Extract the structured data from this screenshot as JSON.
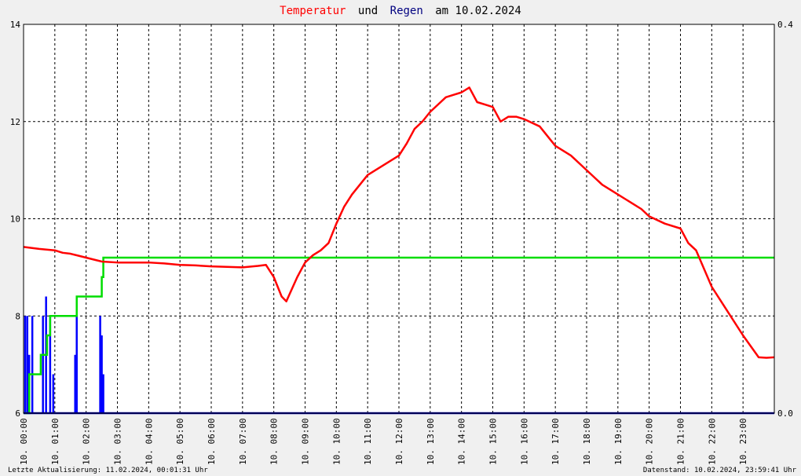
{
  "title": {
    "part1": "Temperatur",
    "part2": "und",
    "part3": "Regen",
    "part4": "am 10.02.2024",
    "color_temp": "#ff0000",
    "color_rain": "#000080",
    "color_plain": "#000000"
  },
  "footer": {
    "left": "Letzte Aktualisierung: 11.02.2024, 00:01:31 Uhr",
    "right": "Datenstand: 10.02.2024, 23:59:41 Uhr"
  },
  "chart_data": {
    "type": "line",
    "title": "Temperatur und Regen am 10.02.2024",
    "x_unit": "hour of day",
    "xlim": [
      0,
      24
    ],
    "x_ticks": [
      "10. 00:00",
      "10. 01:00",
      "10. 02:00",
      "10. 03:00",
      "10. 04:00",
      "10. 05:00",
      "10. 06:00",
      "10. 07:00",
      "10. 08:00",
      "10. 09:00",
      "10. 10:00",
      "10. 11:00",
      "10. 12:00",
      "10. 13:00",
      "10. 14:00",
      "10. 15:00",
      "10. 16:00",
      "10. 17:00",
      "10. 18:00",
      "10. 19:00",
      "10. 20:00",
      "10. 21:00",
      "10. 22:00",
      "10. 23:00"
    ],
    "y_left": {
      "ylim": [
        6,
        14
      ],
      "ticks": [
        "6",
        "8",
        "10",
        "12",
        "14"
      ]
    },
    "y_right": {
      "ylim": [
        0.0,
        0.4
      ],
      "ticks": [
        "0.0",
        "0.4"
      ]
    },
    "grid": true,
    "legend": "none",
    "series": [
      {
        "key": "temp",
        "axis": "left",
        "color": "#ff0000",
        "x": [
          0,
          0.5,
          1,
          1.25,
          1.5,
          1.75,
          2,
          2.25,
          2.5,
          3,
          3.5,
          4,
          4.5,
          5,
          5.5,
          6,
          6.5,
          7,
          7.5,
          7.75,
          8,
          8.25,
          8.4,
          8.75,
          9,
          9.25,
          9.5,
          9.75,
          10,
          10.25,
          10.5,
          11,
          11.5,
          12,
          12.25,
          12.5,
          12.75,
          13,
          13.5,
          13.75,
          14,
          14.25,
          14.5,
          14.75,
          15,
          15.25,
          15.5,
          15.75,
          16,
          16.5,
          17,
          17.5,
          18,
          18.5,
          19,
          19.25,
          19.5,
          19.75,
          20,
          20.5,
          21,
          21.25,
          21.5,
          22,
          22.5,
          23,
          23.5,
          23.75,
          24
        ],
        "y": [
          9.42,
          9.38,
          9.35,
          9.3,
          9.28,
          9.24,
          9.2,
          9.16,
          9.12,
          9.1,
          9.1,
          9.1,
          9.08,
          9.05,
          9.04,
          9.02,
          9.01,
          9.0,
          9.03,
          9.05,
          8.8,
          8.4,
          8.3,
          8.8,
          9.1,
          9.25,
          9.35,
          9.5,
          9.9,
          10.25,
          10.5,
          10.9,
          11.1,
          11.3,
          11.55,
          11.85,
          12.0,
          12.2,
          12.5,
          12.55,
          12.6,
          12.7,
          12.4,
          12.35,
          12.3,
          12.0,
          12.1,
          12.1,
          12.05,
          11.9,
          11.5,
          11.3,
          11.0,
          10.7,
          10.5,
          10.4,
          10.3,
          10.2,
          10.05,
          9.9,
          9.8,
          9.5,
          9.35,
          8.6,
          8.1,
          7.6,
          7.15,
          7.14,
          7.15
        ]
      },
      {
        "key": "rain_bars",
        "axis": "right",
        "color": "#0000ff",
        "x": [
          0.05,
          0.12,
          0.18,
          0.28,
          0.62,
          0.72,
          0.85,
          0.95,
          1.65,
          1.7,
          2.45,
          2.5,
          2.55
        ],
        "y": [
          0.1,
          0.1,
          0.06,
          0.1,
          0.1,
          0.12,
          0.1,
          0.04,
          0.06,
          0.1,
          0.1,
          0.08,
          0.04
        ]
      },
      {
        "key": "rain_sum",
        "axis": "right",
        "color": "#00dd00",
        "x": [
          0,
          0.18,
          0.18,
          0.55,
          0.55,
          0.75,
          0.75,
          0.85,
          0.85,
          1.7,
          1.7,
          2.5,
          2.5,
          2.55,
          2.55,
          24
        ],
        "y": [
          0.0,
          0.0,
          0.04,
          0.04,
          0.06,
          0.06,
          0.08,
          0.08,
          0.1,
          0.1,
          0.12,
          0.12,
          0.14,
          0.14,
          0.16,
          0.16
        ]
      },
      {
        "key": "rain_zero",
        "axis": "right",
        "color": "#0000aa",
        "x": [
          0,
          24
        ],
        "y": [
          0.0,
          0.0
        ]
      }
    ]
  }
}
